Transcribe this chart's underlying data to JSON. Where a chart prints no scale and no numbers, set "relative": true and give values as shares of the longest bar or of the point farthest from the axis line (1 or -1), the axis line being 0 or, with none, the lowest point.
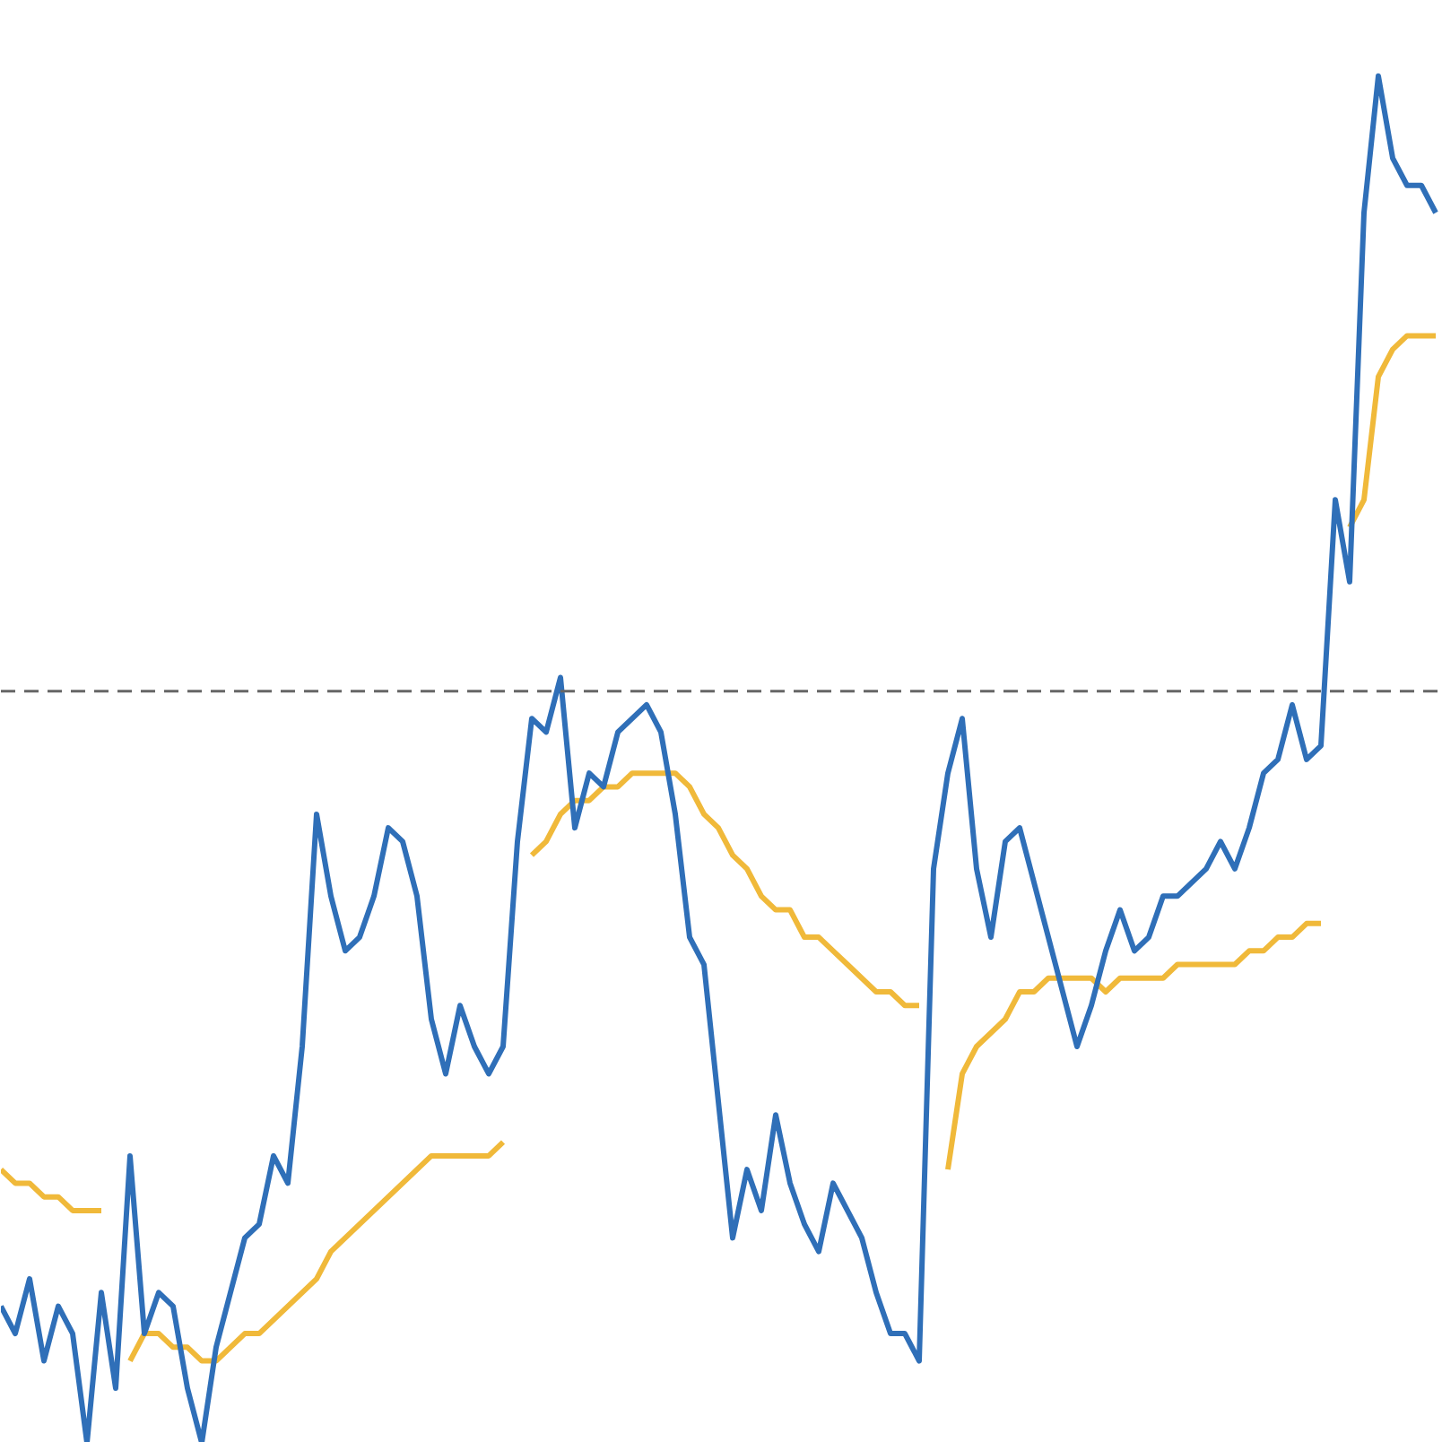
{
  "chart_data": {
    "type": "line",
    "relative": true,
    "categories": [
      null,
      null,
      null,
      null,
      null,
      null,
      null,
      null,
      null,
      null,
      null,
      null,
      null,
      null,
      null,
      null,
      null,
      null,
      null,
      null,
      null,
      null,
      null,
      null,
      null,
      null,
      null,
      null,
      null,
      null,
      null,
      null,
      null,
      null,
      null,
      null,
      null,
      null,
      null,
      null,
      null,
      null,
      null,
      null,
      null,
      null,
      null,
      null,
      null,
      null,
      null,
      null,
      null,
      null,
      null,
      null,
      null,
      null,
      null,
      null,
      null,
      null,
      null,
      null,
      null,
      null,
      null,
      null,
      null,
      null,
      null,
      null,
      null,
      null,
      null,
      null,
      null,
      null,
      null,
      null,
      null,
      null,
      null,
      null,
      null,
      null,
      null,
      null,
      null,
      null,
      null,
      null,
      null,
      null,
      null,
      null,
      null,
      null,
      null,
      null,
      null
    ],
    "ref_lines": [
      {
        "axis": "y",
        "value": 0.55,
        "label": null,
        "color": "#666666",
        "line_style": "dashed"
      }
    ],
    "series": [
      {
        "color": "#f0b93a",
        "values": [
          0.2,
          0.19,
          0.19,
          0.18,
          0.18,
          0.17,
          0.17,
          0.17,
          null,
          0.06,
          0.08,
          0.08,
          0.07,
          0.07,
          0.06,
          0.06,
          0.07,
          0.08,
          0.08,
          0.09,
          0.1,
          0.11,
          0.12,
          0.14,
          0.15,
          0.16,
          0.17,
          0.18,
          0.19,
          0.2,
          0.21,
          0.21,
          0.21,
          0.21,
          0.21,
          0.22,
          null,
          0.43,
          0.44,
          0.46,
          0.47,
          0.47,
          0.48,
          0.48,
          0.49,
          0.49,
          0.49,
          0.49,
          0.48,
          0.46,
          0.45,
          0.43,
          0.42,
          0.4,
          0.39,
          0.39,
          0.37,
          0.37,
          0.36,
          0.35,
          0.34,
          0.33,
          0.33,
          0.32,
          0.32,
          null,
          0.2,
          0.27,
          0.29,
          0.3,
          0.31,
          0.33,
          0.33,
          0.34,
          0.34,
          0.34,
          0.34,
          0.33,
          0.34,
          0.34,
          0.34,
          0.34,
          0.35,
          0.35,
          0.35,
          0.35,
          0.35,
          0.36,
          0.36,
          0.37,
          0.37,
          0.38,
          0.38,
          null,
          0.67,
          0.69,
          0.78,
          0.8,
          0.81,
          0.81,
          0.81
        ]
      },
      {
        "color": "#2f6fb8",
        "values": [
          0.1,
          0.08,
          0.12,
          0.06,
          0.1,
          0.08,
          0.0,
          0.11,
          0.04,
          0.21,
          0.08,
          0.11,
          0.1,
          0.04,
          0.0,
          0.07,
          0.11,
          0.15,
          0.16,
          0.21,
          0.19,
          0.29,
          0.46,
          0.4,
          0.36,
          0.37,
          0.4,
          0.45,
          0.44,
          0.4,
          0.31,
          0.27,
          0.32,
          0.29,
          0.27,
          0.29,
          0.44,
          0.53,
          0.52,
          0.56,
          0.45,
          0.49,
          0.48,
          0.52,
          0.53,
          0.54,
          0.52,
          0.46,
          0.37,
          0.35,
          0.25,
          0.15,
          0.2,
          0.17,
          0.24,
          0.19,
          0.16,
          0.14,
          0.19,
          0.17,
          0.15,
          0.11,
          0.08,
          0.08,
          0.06,
          0.42,
          0.49,
          0.53,
          0.42,
          0.37,
          0.44,
          0.45,
          0.41,
          0.37,
          0.33,
          0.29,
          0.32,
          0.36,
          0.39,
          0.36,
          0.37,
          0.4,
          0.4,
          0.41,
          0.42,
          0.44,
          0.42,
          0.45,
          0.49,
          0.5,
          0.54,
          0.5,
          0.51,
          0.69,
          0.63,
          0.9,
          1.0,
          0.94,
          0.92,
          0.92,
          0.9
        ]
      }
    ]
  }
}
